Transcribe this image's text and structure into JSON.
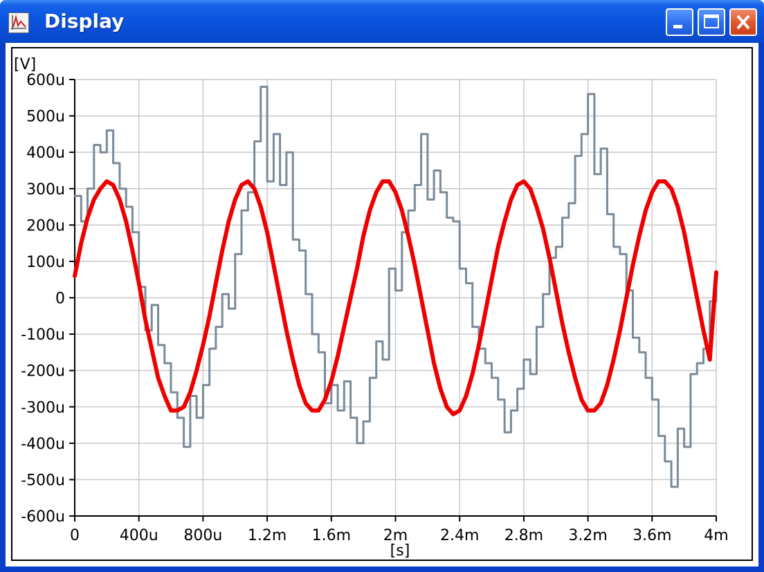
{
  "window": {
    "title": "Display",
    "icon": "waveform-app-icon",
    "buttons": [
      "minimize",
      "maximize",
      "close"
    ]
  },
  "chart_data": {
    "type": "line",
    "xlabel": "[s]",
    "ylabel": "[V]",
    "xlim": [
      0,
      0.004
    ],
    "ylim": [
      -0.0006,
      0.0006
    ],
    "x_ticks": [
      "0",
      "400u",
      "800u",
      "1.2m",
      "1.6m",
      "2m",
      "2.4m",
      "2.8m",
      "3.2m",
      "3.6m",
      "4m"
    ],
    "y_ticks": [
      "600u",
      "500u",
      "400u",
      "300u",
      "200u",
      "100u",
      "0",
      "-100u",
      "-200u",
      "-300u",
      "-400u",
      "-500u",
      "-600u"
    ],
    "grid": true,
    "series": [
      {
        "color": "#7a8a98",
        "x": [
          0,
          4e-05,
          8e-05,
          0.00012,
          0.00016,
          0.0002,
          0.00024,
          0.00028,
          0.00032,
          0.00036,
          0.0004,
          0.00044,
          0.00048,
          0.00052,
          0.00056,
          0.0006,
          0.00064,
          0.00068,
          0.00072,
          0.00076,
          0.0008,
          0.00084,
          0.00088,
          0.00092,
          0.00096,
          0.001,
          0.00104,
          0.00108,
          0.00112,
          0.00116,
          0.0012,
          0.00124,
          0.00128,
          0.00132,
          0.00136,
          0.0014,
          0.00144,
          0.00148,
          0.00152,
          0.00156,
          0.0016,
          0.00164,
          0.00168,
          0.00172,
          0.00176,
          0.0018,
          0.00184,
          0.00188,
          0.00192,
          0.00196,
          0.002,
          0.00204,
          0.00208,
          0.00212,
          0.00216,
          0.0022,
          0.00224,
          0.00228,
          0.00232,
          0.00236,
          0.0024,
          0.00244,
          0.00248,
          0.00252,
          0.00256,
          0.0026,
          0.00264,
          0.00268,
          0.00272,
          0.00276,
          0.0028,
          0.00284,
          0.00288,
          0.00292,
          0.00296,
          0.003,
          0.00304,
          0.00308,
          0.00312,
          0.00316,
          0.0032,
          0.00324,
          0.00328,
          0.00332,
          0.00336,
          0.0034,
          0.00344,
          0.00348,
          0.00352,
          0.00356,
          0.0036,
          0.00364,
          0.00368,
          0.00372,
          0.00376,
          0.0038,
          0.00384,
          0.00388,
          0.00392,
          0.00396,
          0.004
        ],
        "y": [
          0.00028,
          0.00021,
          0.0003,
          0.00042,
          0.0004,
          0.00046,
          0.00037,
          0.0003,
          0.00025,
          0.00018,
          3e-05,
          -9e-05,
          -2e-05,
          -0.00013,
          -0.00018,
          -0.00026,
          -0.00033,
          -0.00041,
          -0.00027,
          -0.00033,
          -0.00024,
          -0.00014,
          -8e-05,
          1e-05,
          -3e-05,
          0.00012,
          0.00024,
          0.00029,
          0.00043,
          0.00058,
          0.00032,
          0.00045,
          0.00031,
          0.0004,
          0.00016,
          0.00013,
          1e-05,
          -0.0001,
          -0.00015,
          -0.00029,
          -0.00024,
          -0.00031,
          -0.00023,
          -0.00033,
          -0.0004,
          -0.00034,
          -0.00022,
          -0.00012,
          -0.00017,
          8e-05,
          2e-05,
          0.00018,
          0.00024,
          0.00031,
          0.00045,
          0.00027,
          0.00035,
          0.00029,
          0.00022,
          0.00021,
          8e-05,
          4e-05,
          -8e-05,
          -0.00014,
          -0.00018,
          -0.00022,
          -0.00028,
          -0.00037,
          -0.00031,
          -0.00025,
          -0.00017,
          -0.00021,
          -8e-05,
          1e-05,
          0.00011,
          0.00014,
          0.00022,
          0.00026,
          0.00039,
          0.00045,
          0.00056,
          0.00034,
          0.00041,
          0.00023,
          0.00014,
          0.00012,
          2e-05,
          -0.00011,
          -0.00015,
          -0.00022,
          -0.00028,
          -0.00038,
          -0.00045,
          -0.00052,
          -0.00036,
          -0.00041,
          -0.00021,
          -0.00018,
          -0.00014,
          -1e-05,
          7e-05
        ]
      },
      {
        "color": "#ee0000",
        "x": [
          0,
          4e-05,
          8e-05,
          0.00012,
          0.00016,
          0.0002,
          0.00024,
          0.00028,
          0.00032,
          0.00036,
          0.0004,
          0.00044,
          0.00048,
          0.00052,
          0.00056,
          0.0006,
          0.00064,
          0.00068,
          0.00072,
          0.00076,
          0.0008,
          0.00084,
          0.00088,
          0.00092,
          0.00096,
          0.001,
          0.00104,
          0.00108,
          0.00112,
          0.00116,
          0.0012,
          0.00124,
          0.00128,
          0.00132,
          0.00136,
          0.0014,
          0.00144,
          0.00148,
          0.00152,
          0.00156,
          0.0016,
          0.00164,
          0.00168,
          0.00172,
          0.00176,
          0.0018,
          0.00184,
          0.00188,
          0.00192,
          0.00196,
          0.002,
          0.00204,
          0.00208,
          0.00212,
          0.00216,
          0.0022,
          0.00224,
          0.00228,
          0.00232,
          0.00236,
          0.0024,
          0.00244,
          0.00248,
          0.00252,
          0.00256,
          0.0026,
          0.00264,
          0.00268,
          0.00272,
          0.00276,
          0.0028,
          0.00284,
          0.00288,
          0.00292,
          0.00296,
          0.003,
          0.00304,
          0.00308,
          0.00312,
          0.00316,
          0.0032,
          0.00324,
          0.00328,
          0.00332,
          0.00336,
          0.0034,
          0.00344,
          0.00348,
          0.00352,
          0.00356,
          0.0036,
          0.00364,
          0.00368,
          0.00372,
          0.00376,
          0.0038,
          0.00384,
          0.00388,
          0.00392,
          0.00396,
          0.004
        ],
        "y": [
          6e-05,
          0.00015,
          0.00022,
          0.00027,
          0.0003,
          0.00032,
          0.00031,
          0.00027,
          0.00021,
          0.00013,
          4e-05,
          -6e-05,
          -0.00014,
          -0.00022,
          -0.00027,
          -0.00031,
          -0.00031,
          -0.0003,
          -0.00026,
          -0.0002,
          -0.00013,
          -5e-05,
          4e-05,
          0.00013,
          0.00021,
          0.00027,
          0.00031,
          0.00032,
          0.0003,
          0.00025,
          0.00018,
          9e-05,
          0,
          -9e-05,
          -0.00017,
          -0.00024,
          -0.00029,
          -0.00031,
          -0.00031,
          -0.00028,
          -0.00023,
          -0.00016,
          -8e-05,
          0,
          8e-05,
          0.00017,
          0.00024,
          0.00029,
          0.00032,
          0.00032,
          0.00029,
          0.00024,
          0.00017,
          9e-05,
          0,
          -9e-05,
          -0.00018,
          -0.00025,
          -0.0003,
          -0.00032,
          -0.00031,
          -0.00027,
          -0.00021,
          -0.00013,
          -4e-05,
          5e-05,
          0.00014,
          0.00021,
          0.00027,
          0.00031,
          0.00032,
          0.0003,
          0.00025,
          0.00019,
          0.00011,
          2e-05,
          -7e-05,
          -0.00015,
          -0.00022,
          -0.00028,
          -0.00031,
          -0.00031,
          -0.00029,
          -0.00024,
          -0.00017,
          -9e-05,
          0,
          9e-05,
          0.00017,
          0.00024,
          0.00029,
          0.00032,
          0.00032,
          0.0003,
          0.00025,
          0.00018,
          9e-05,
          0,
          -9e-05,
          -0.00017,
          7e-05
        ]
      }
    ]
  }
}
